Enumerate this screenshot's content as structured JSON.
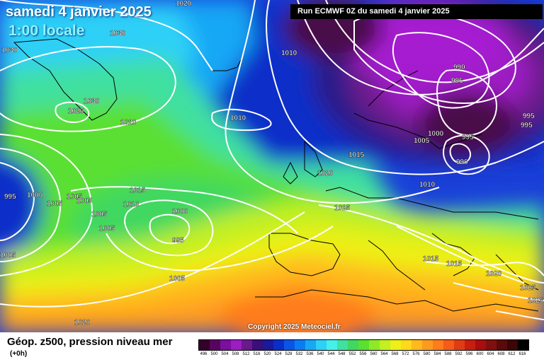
{
  "header": {
    "date": "samedi 4 janvier 2025",
    "time": "1:00 locale",
    "run": "Run ECMWF 0Z du samedi 4 janvier 2025"
  },
  "map": {
    "copyright": "Copyright 2025 Meteociel.fr",
    "pressure_labels": [
      "1020",
      "1030",
      "1030",
      "1030",
      "1020",
      "1020",
      "1010",
      "1010",
      "1015",
      "1020",
      "995",
      "1000",
      "1005",
      "1005",
      "1005",
      "1010",
      "1005",
      "1005",
      "1015",
      "1000",
      "995",
      "1005",
      "1005",
      "1025",
      "990",
      "995",
      "995",
      "995",
      "1000",
      "1005",
      "995",
      "990",
      "1010",
      "1015",
      "1015",
      "1020",
      "1025",
      "1025",
      "1020",
      "1005"
    ]
  },
  "legend": {
    "title": "Géop. z500, pression niveau mer",
    "subtitle": "(+0h)",
    "ticks": [
      "496",
      "500",
      "504",
      "508",
      "512",
      "516",
      "520",
      "524",
      "528",
      "532",
      "536",
      "540",
      "544",
      "548",
      "552",
      "556",
      "560",
      "564",
      "568",
      "572",
      "576",
      "580",
      "584",
      "588",
      "592",
      "596",
      "600",
      "604",
      "608",
      "612",
      "616"
    ],
    "colors": [
      "#35002a",
      "#58045e",
      "#7a0fa0",
      "#9c1dc2",
      "#6a1a8a",
      "#3a0f7a",
      "#1a1a9a",
      "#0a2ec8",
      "#0a55e6",
      "#0a7cf2",
      "#19a7f5",
      "#2ed0f7",
      "#45f0e8",
      "#3fe0a0",
      "#40d860",
      "#5ae030",
      "#8eea28",
      "#c2f020",
      "#eef018",
      "#ffd91a",
      "#ffb91f",
      "#ff9a20",
      "#ff7c1c",
      "#f55c18",
      "#e03c14",
      "#c81e10",
      "#a80e0e",
      "#801010",
      "#5a0a0a",
      "#3a0606",
      "#000000"
    ]
  }
}
